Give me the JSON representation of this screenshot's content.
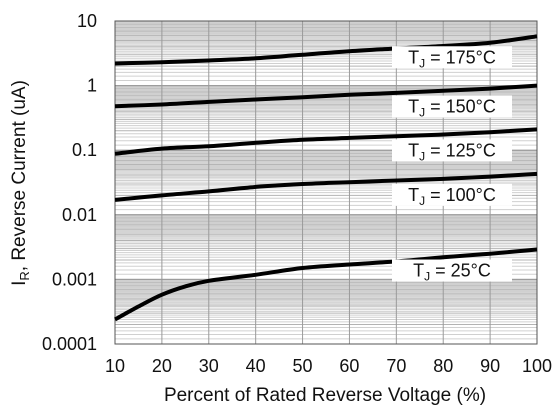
{
  "chart_data": {
    "type": "line",
    "xlabel": "Percent of Rated Reverse Voltage (%)",
    "ylabel_main": "I",
    "ylabel_sub": "R",
    "ylabel_rest": ", Reverse Current (uA)",
    "xlim": [
      10,
      100
    ],
    "ylim": [
      0.0001,
      10
    ],
    "yscale": "log",
    "grid": true,
    "xticks": [
      "10",
      "20",
      "30",
      "40",
      "50",
      "60",
      "70",
      "80",
      "90",
      "100"
    ],
    "yticks": [
      "0.0001",
      "0.001",
      "0.01",
      "0.1",
      "1",
      "10"
    ],
    "series": [
      {
        "label_main": "T",
        "label_sub": "J",
        "label_rest": " = 175°C",
        "points": [
          [
            10,
            2.2
          ],
          [
            20,
            2.3
          ],
          [
            30,
            2.45
          ],
          [
            40,
            2.65
          ],
          [
            50,
            3.0
          ],
          [
            60,
            3.4
          ],
          [
            70,
            3.75
          ],
          [
            80,
            4.1
          ],
          [
            90,
            4.6
          ],
          [
            100,
            5.8
          ]
        ]
      },
      {
        "label_main": "T",
        "label_sub": "J",
        "label_rest": " = 150°C",
        "points": [
          [
            10,
            0.48
          ],
          [
            20,
            0.51
          ],
          [
            30,
            0.56
          ],
          [
            40,
            0.61
          ],
          [
            50,
            0.66
          ],
          [
            60,
            0.72
          ],
          [
            70,
            0.77
          ],
          [
            80,
            0.83
          ],
          [
            90,
            0.9
          ],
          [
            100,
            1.0
          ]
        ]
      },
      {
        "label_main": "T",
        "label_sub": "J",
        "label_rest": " = 125°C",
        "points": [
          [
            10,
            0.088
          ],
          [
            20,
            0.106
          ],
          [
            30,
            0.115
          ],
          [
            40,
            0.13
          ],
          [
            50,
            0.145
          ],
          [
            60,
            0.155
          ],
          [
            70,
            0.165
          ],
          [
            80,
            0.175
          ],
          [
            90,
            0.19
          ],
          [
            100,
            0.21
          ]
        ]
      },
      {
        "label_main": "T",
        "label_sub": "J",
        "label_rest": " = 100°C",
        "points": [
          [
            10,
            0.017
          ],
          [
            20,
            0.02
          ],
          [
            30,
            0.023
          ],
          [
            40,
            0.027
          ],
          [
            50,
            0.03
          ],
          [
            60,
            0.032
          ],
          [
            70,
            0.034
          ],
          [
            80,
            0.036
          ],
          [
            90,
            0.039
          ],
          [
            100,
            0.043
          ]
        ]
      },
      {
        "label_main": "T",
        "label_sub": "J",
        "label_rest": " = 25°C",
        "points": [
          [
            10,
            0.00024
          ],
          [
            15,
            0.00038
          ],
          [
            20,
            0.00058
          ],
          [
            25,
            0.00078
          ],
          [
            30,
            0.00095
          ],
          [
            40,
            0.00118
          ],
          [
            50,
            0.0015
          ],
          [
            60,
            0.0017
          ],
          [
            70,
            0.0019
          ],
          [
            80,
            0.0022
          ],
          [
            90,
            0.0025
          ],
          [
            100,
            0.0029
          ]
        ]
      }
    ]
  }
}
